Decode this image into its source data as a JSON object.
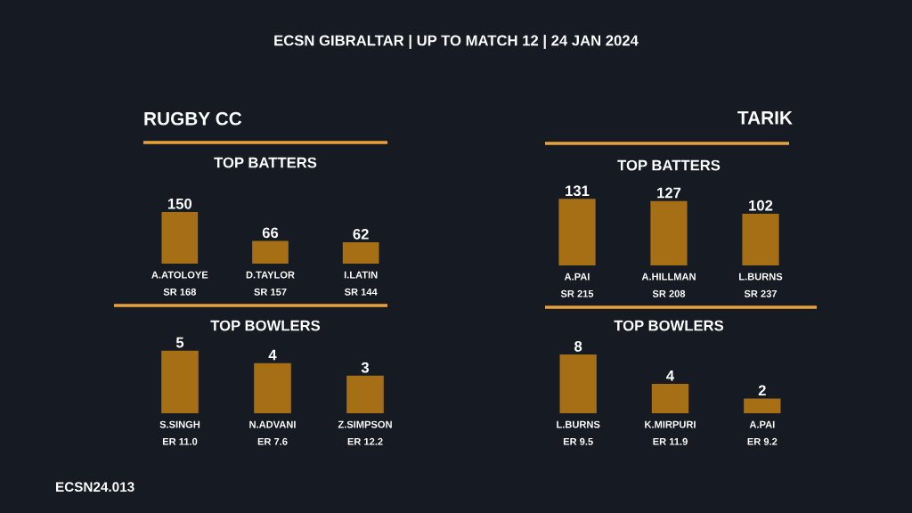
{
  "chart_data": [
    {
      "type": "other",
      "title": "ECSN GIBRALTAR | UP TO MATCH 12 | 24 JAN 2024",
      "annotations": [
        "ECSN24.013"
      ]
    },
    {
      "type": "bar",
      "title": "RUGBY CC",
      "subtitle": "TOP BATTERS",
      "categories": [
        "A.ATOLOYE\nSR 168",
        "D.TAYLOR\nSR 157",
        "I.LATIN\nSR 144"
      ],
      "values": [
        150,
        66,
        62
      ],
      "color": "#a66f16",
      "data_labels": true
    },
    {
      "type": "bar",
      "title": "TOP BOWLERS",
      "categories": [
        "S.SINGH\nER 11.0",
        "N.ADVANI\nER 7.6",
        "Z.SIMPSON\nER 12.2"
      ],
      "values": [
        5,
        4,
        3
      ],
      "color": "#a66f16",
      "data_labels": true
    },
    {
      "type": "bar",
      "title": "TARIK",
      "subtitle": "TOP BATTERS",
      "categories": [
        "A.PAI\nSR 215",
        "A.HILLMAN\nSR 208",
        "L.BURNS\nSR 237"
      ],
      "values": [
        131,
        127,
        102
      ],
      "color": "#a66f16",
      "data_labels": true
    },
    {
      "type": "bar",
      "title": "TOP BOWLERS",
      "categories": [
        "L.BURNS\nER 9.5",
        "K.MIRPURI\nER 11.9",
        "A.PAI\nER 9.2"
      ],
      "values": [
        8,
        4,
        2
      ],
      "color": "#a66f16",
      "data_labels": true
    }
  ]
}
